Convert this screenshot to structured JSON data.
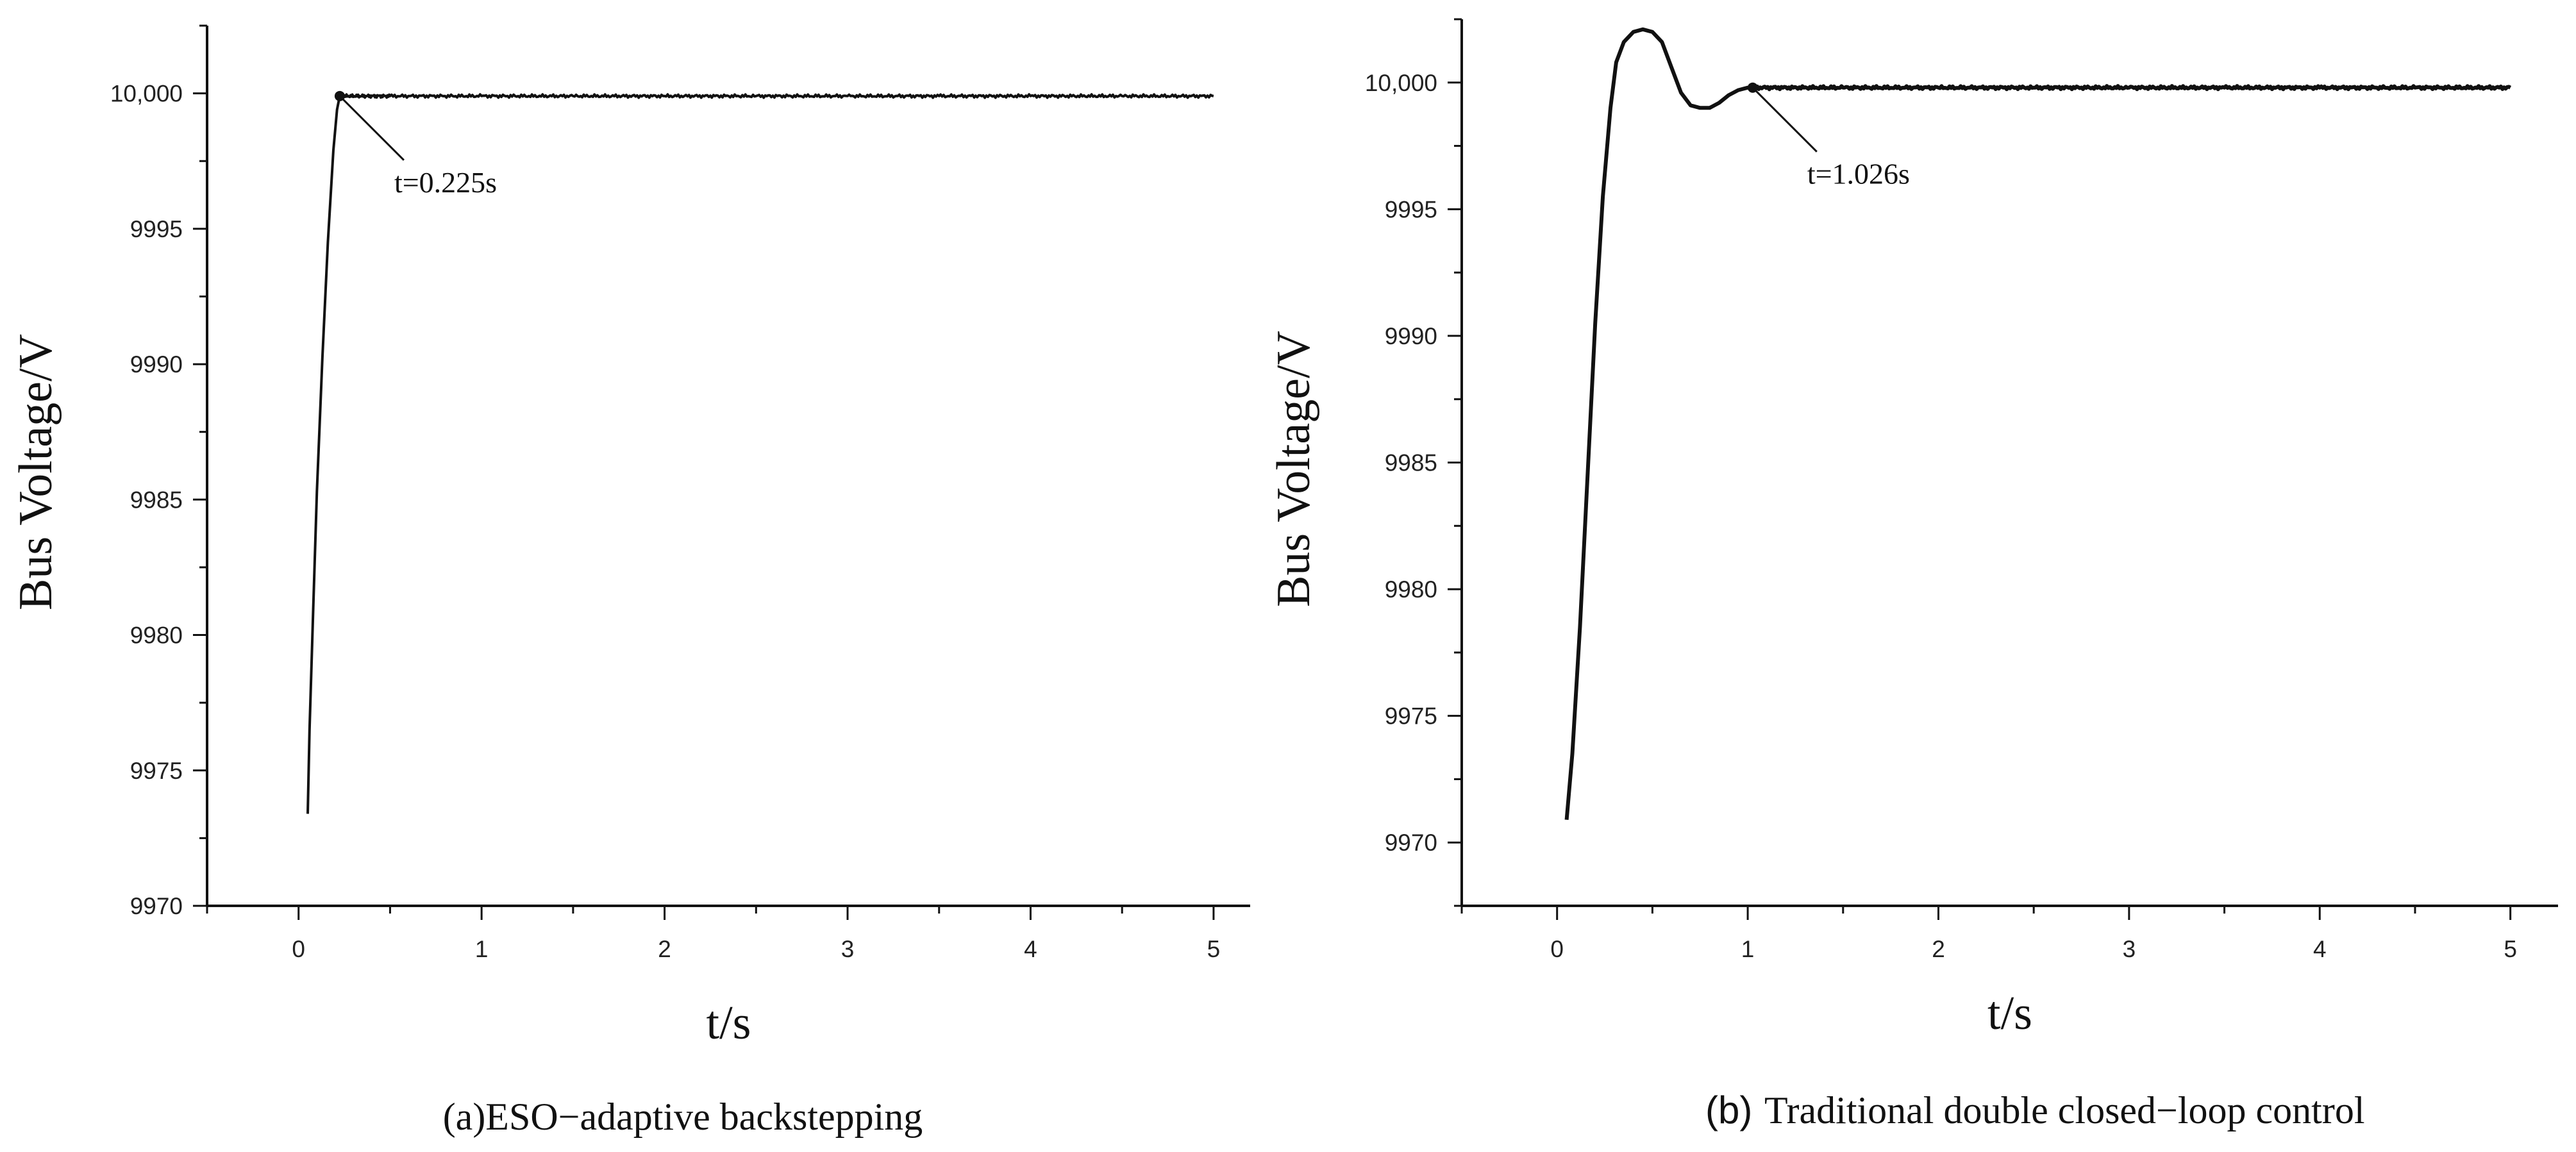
{
  "chart_data": [
    {
      "type": "line",
      "panel": "a",
      "caption": "(a)ESO−adaptive backstepping",
      "caption_prefix": "",
      "caption_text": "(a)ESO−adaptive backstepping",
      "xlabel": "t/s",
      "ylabel": "Bus Voltage/V",
      "xlim": [
        -0.5,
        5.2
      ],
      "ylim": [
        9970,
        10002.5
      ],
      "xticks": [
        0,
        1,
        2,
        3,
        4,
        5
      ],
      "xtick_labels": [
        "0",
        "1",
        "2",
        "3",
        "4",
        "5"
      ],
      "yticks": [
        9970,
        9975,
        9980,
        9985,
        9990,
        9995,
        10000
      ],
      "ytick_labels": [
        "9970",
        "9975",
        "9980",
        "9985",
        "9990",
        "9995",
        "10,000"
      ],
      "series": [
        {
          "x": [
            0.05,
            0.06,
            0.08,
            0.1,
            0.13,
            0.16,
            0.19,
            0.21,
            0.225,
            0.5,
            1.0,
            1.5,
            2.0,
            2.5,
            3.0,
            3.5,
            4.0,
            4.5,
            5.0
          ],
          "y": [
            9973.4,
            9976.5,
            9981.0,
            9985.3,
            9990.2,
            9994.5,
            9997.9,
            9999.4,
            9999.9,
            9999.9,
            9999.9,
            9999.9,
            9999.9,
            9999.9,
            9999.9,
            9999.9,
            9999.9,
            9999.9,
            9999.9
          ]
        }
      ],
      "annotation": {
        "text": "t=0.225s",
        "x": 0.225,
        "y": 9999.9
      }
    },
    {
      "type": "line",
      "panel": "b",
      "caption": "(b)Traditional  double closed−loop control",
      "caption_prefix": "(b)",
      "caption_text": "Traditional  double closed−loop control",
      "xlabel": "t/s",
      "ylabel": "Bus Voltage/V",
      "xlim": [
        -0.5,
        5.25
      ],
      "ylim": [
        9967.5,
        10002.5
      ],
      "xticks": [
        0,
        1,
        2,
        3,
        4,
        5
      ],
      "xtick_labels": [
        "0",
        "1",
        "2",
        "3",
        "4",
        "5"
      ],
      "yticks": [
        9970,
        9975,
        9980,
        9985,
        9990,
        9995,
        10000
      ],
      "ytick_labels": [
        "9970",
        "9975",
        "9980",
        "9985",
        "9990",
        "9995",
        "10,000"
      ],
      "series": [
        {
          "x": [
            0.05,
            0.08,
            0.12,
            0.16,
            0.2,
            0.24,
            0.28,
            0.31,
            0.35,
            0.4,
            0.45,
            0.5,
            0.55,
            0.6,
            0.65,
            0.7,
            0.75,
            0.8,
            0.85,
            0.9,
            0.95,
            1.0,
            1.026,
            1.5,
            2.0,
            2.5,
            3.0,
            3.5,
            4.0,
            4.5,
            5.0
          ],
          "y": [
            9970.9,
            9973.5,
            9978.5,
            9984.5,
            9990.5,
            9995.5,
            9999.0,
            10000.8,
            10001.6,
            10002.0,
            10002.1,
            10002.0,
            10001.6,
            10000.6,
            9999.6,
            9999.1,
            9999.0,
            9999.0,
            9999.2,
            9999.5,
            9999.7,
            9999.8,
            9999.8,
            9999.8,
            9999.8,
            9999.8,
            9999.8,
            9999.8,
            9999.8,
            9999.8,
            9999.8
          ]
        }
      ],
      "annotation": {
        "text": "t=1.026s",
        "x": 1.026,
        "y": 9999.8
      }
    }
  ]
}
